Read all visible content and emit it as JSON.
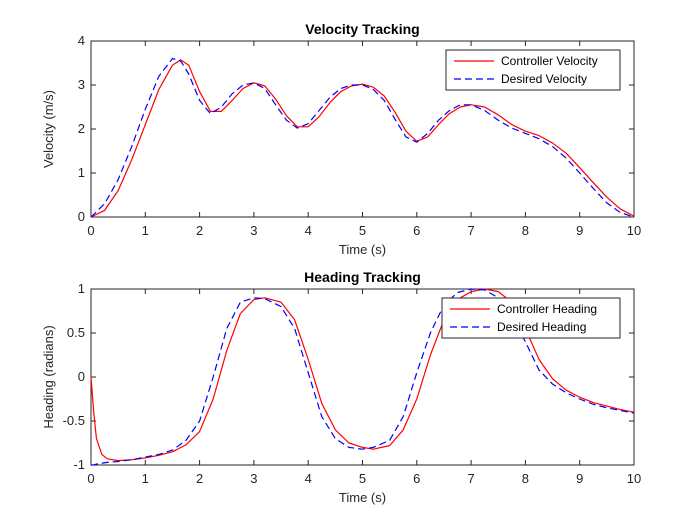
{
  "colors": {
    "controller": "#ff0000",
    "desired": "#0000ff",
    "axes": "#262626"
  },
  "chart_data": [
    {
      "type": "line",
      "title": "Velocity Tracking",
      "xlabel": "Time (s)",
      "ylabel": "Velocity (m/s)",
      "xlim": [
        0,
        10
      ],
      "ylim": [
        0,
        4
      ],
      "xticks": [
        0,
        1,
        2,
        3,
        4,
        5,
        6,
        7,
        8,
        9,
        10
      ],
      "yticks": [
        0,
        1,
        2,
        3,
        4
      ],
      "xtick_labels": [
        "0",
        "1",
        "2",
        "3",
        "4",
        "5",
        "6",
        "7",
        "8",
        "9",
        "10"
      ],
      "ytick_labels": [
        "0",
        "1",
        "2",
        "3",
        "4"
      ],
      "grid": false,
      "legend_position": "top-right",
      "series": [
        {
          "name": "Controller Velocity",
          "style": "solid",
          "color": "#ff0000",
          "x": [
            0,
            0.25,
            0.5,
            0.75,
            1,
            1.25,
            1.5,
            1.65,
            1.8,
            2,
            2.2,
            2.4,
            2.6,
            2.8,
            3,
            3.2,
            3.4,
            3.6,
            3.8,
            4,
            4.2,
            4.4,
            4.6,
            4.8,
            5,
            5.2,
            5.4,
            5.6,
            5.8,
            6,
            6.2,
            6.4,
            6.6,
            6.8,
            7,
            7.25,
            7.5,
            7.75,
            8,
            8.25,
            8.5,
            8.75,
            9,
            9.25,
            9.5,
            9.75,
            10
          ],
          "y": [
            0,
            0.15,
            0.6,
            1.3,
            2.1,
            2.9,
            3.45,
            3.57,
            3.45,
            2.85,
            2.4,
            2.4,
            2.65,
            2.92,
            3.05,
            2.98,
            2.68,
            2.3,
            2.05,
            2.05,
            2.28,
            2.6,
            2.85,
            2.98,
            3.02,
            2.95,
            2.75,
            2.38,
            1.95,
            1.72,
            1.82,
            2.1,
            2.35,
            2.5,
            2.55,
            2.5,
            2.32,
            2.1,
            1.95,
            1.85,
            1.68,
            1.45,
            1.12,
            0.78,
            0.45,
            0.18,
            0.02
          ]
        },
        {
          "name": "Desired Velocity",
          "style": "dashed",
          "color": "#0000ff",
          "x": [
            0,
            0.25,
            0.5,
            0.75,
            1,
            1.25,
            1.5,
            1.65,
            1.8,
            2,
            2.2,
            2.4,
            2.6,
            2.8,
            3,
            3.2,
            3.4,
            3.6,
            3.8,
            4,
            4.2,
            4.4,
            4.6,
            4.8,
            5,
            5.2,
            5.4,
            5.6,
            5.8,
            6,
            6.2,
            6.4,
            6.6,
            6.8,
            7,
            7.25,
            7.5,
            7.75,
            8,
            8.25,
            8.5,
            8.75,
            9,
            9.25,
            9.5,
            9.75,
            10
          ],
          "y": [
            0,
            0.3,
            0.85,
            1.6,
            2.45,
            3.2,
            3.6,
            3.55,
            3.25,
            2.65,
            2.35,
            2.5,
            2.8,
            3.0,
            3.05,
            2.92,
            2.55,
            2.2,
            2.02,
            2.12,
            2.42,
            2.72,
            2.92,
            3.0,
            3.0,
            2.9,
            2.65,
            2.22,
            1.82,
            1.7,
            1.9,
            2.2,
            2.42,
            2.55,
            2.55,
            2.42,
            2.2,
            2.02,
            1.9,
            1.78,
            1.6,
            1.34,
            1.0,
            0.65,
            0.32,
            0.1,
            0.0
          ]
        }
      ]
    },
    {
      "type": "line",
      "title": "Heading Tracking",
      "xlabel": "Time (s)",
      "ylabel": "Heading (radians)",
      "xlim": [
        0,
        10
      ],
      "ylim": [
        -1,
        1
      ],
      "xticks": [
        0,
        1,
        2,
        3,
        4,
        5,
        6,
        7,
        8,
        9,
        10
      ],
      "yticks": [
        -1,
        -0.5,
        0,
        0.5,
        1
      ],
      "xtick_labels": [
        "0",
        "1",
        "2",
        "3",
        "4",
        "5",
        "6",
        "7",
        "8",
        "9",
        "10"
      ],
      "ytick_labels": [
        "-1",
        "-0.5",
        "0",
        "0.5",
        "1"
      ],
      "grid": false,
      "legend_position": "top-right",
      "series": [
        {
          "name": "Controller Heading",
          "style": "solid",
          "color": "#ff0000",
          "x": [
            0,
            0.05,
            0.1,
            0.2,
            0.3,
            0.5,
            0.75,
            1,
            1.25,
            1.5,
            1.75,
            2,
            2.25,
            2.5,
            2.75,
            3,
            3.2,
            3.5,
            3.75,
            4,
            4.25,
            4.5,
            4.75,
            5,
            5.2,
            5.5,
            5.75,
            6,
            6.25,
            6.5,
            6.75,
            7,
            7.25,
            7.5,
            7.75,
            8,
            8.25,
            8.5,
            8.75,
            9,
            9.25,
            9.5,
            9.75,
            10
          ],
          "y": [
            0,
            -0.4,
            -0.7,
            -0.88,
            -0.93,
            -0.95,
            -0.94,
            -0.92,
            -0.89,
            -0.85,
            -0.77,
            -0.62,
            -0.25,
            0.3,
            0.72,
            0.88,
            0.9,
            0.85,
            0.65,
            0.2,
            -0.3,
            -0.6,
            -0.75,
            -0.8,
            -0.82,
            -0.78,
            -0.6,
            -0.25,
            0.25,
            0.65,
            0.88,
            0.97,
            1.0,
            0.97,
            0.85,
            0.55,
            0.2,
            -0.02,
            -0.15,
            -0.23,
            -0.29,
            -0.33,
            -0.37,
            -0.4
          ]
        },
        {
          "name": "Desired Heading",
          "style": "dashed",
          "color": "#0000ff",
          "x": [
            0,
            0.05,
            0.1,
            0.2,
            0.3,
            0.5,
            0.75,
            1,
            1.25,
            1.5,
            1.75,
            2,
            2.25,
            2.5,
            2.75,
            3,
            3.2,
            3.5,
            3.75,
            4,
            4.25,
            4.5,
            4.75,
            5,
            5.2,
            5.5,
            5.75,
            6,
            6.25,
            6.5,
            6.75,
            7,
            7.25,
            7.5,
            7.75,
            8,
            8.25,
            8.5,
            8.75,
            9,
            9.25,
            9.5,
            9.75,
            10
          ],
          "y": [
            -1,
            -1,
            -0.99,
            -0.98,
            -0.97,
            -0.96,
            -0.94,
            -0.91,
            -0.88,
            -0.83,
            -0.72,
            -0.5,
            0.0,
            0.55,
            0.85,
            0.9,
            0.89,
            0.8,
            0.55,
            0.05,
            -0.45,
            -0.7,
            -0.8,
            -0.82,
            -0.8,
            -0.72,
            -0.45,
            0.05,
            0.5,
            0.82,
            0.96,
            1.0,
            0.99,
            0.9,
            0.7,
            0.4,
            0.08,
            -0.08,
            -0.18,
            -0.25,
            -0.31,
            -0.35,
            -0.38,
            -0.41
          ]
        }
      ]
    }
  ]
}
